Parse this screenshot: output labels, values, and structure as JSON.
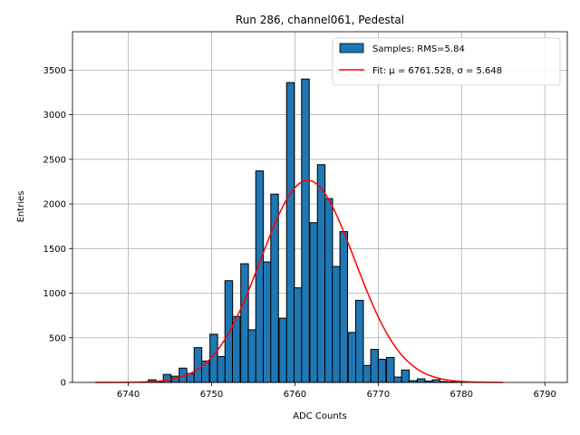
{
  "chart_data": {
    "type": "bar",
    "title": "Run 286, channel061, Pedestal",
    "xlabel": "ADC Counts",
    "ylabel": "Entries",
    "xlim": [
      6733.3,
      6792.7
    ],
    "ylim": [
      0,
      3930
    ],
    "grid": true,
    "legend_position": "top-right",
    "x_ticks": [
      6740,
      6750,
      6760,
      6770,
      6780,
      6790
    ],
    "y_ticks": [
      0,
      500,
      1000,
      1500,
      2000,
      2500,
      3000,
      3500
    ],
    "bin_width": 0.92,
    "bins_start": [
      6741.5,
      6742.4,
      6743.3,
      6744.2,
      6745.2,
      6746.1,
      6747.0,
      6747.9,
      6748.8,
      6749.8,
      6750.7,
      6751.6,
      6752.5,
      6753.5,
      6754.4,
      6755.3,
      6756.2,
      6757.1,
      6758.1,
      6759.0,
      6759.9,
      6760.8,
      6761.8,
      6762.7,
      6763.6,
      6764.5,
      6765.4,
      6766.4,
      6767.3,
      6768.2,
      6769.1,
      6770.0,
      6771.0,
      6771.9,
      6772.8,
      6773.7,
      6774.7,
      6775.6,
      6776.5,
      6777.4,
      6778.3,
      6779.3
    ],
    "counts": [
      5,
      30,
      10,
      90,
      70,
      160,
      100,
      390,
      240,
      540,
      290,
      1140,
      740,
      1330,
      590,
      2370,
      1350,
      2110,
      720,
      3360,
      1060,
      3400,
      1790,
      2440,
      2060,
      1300,
      1690,
      560,
      920,
      190,
      370,
      260,
      280,
      60,
      140,
      20,
      40,
      15,
      30,
      10,
      5,
      3
    ],
    "series": [
      {
        "name": "Samples: RMS=5.84",
        "kind": "histogram",
        "color": "#1f77b4"
      },
      {
        "name": "Fit: μ = 6761.528, σ = 5.648",
        "kind": "gaussian",
        "color": "#ff0000",
        "mu": 6761.528,
        "sigma": 5.648,
        "amplitude": 2265,
        "x_range": [
          6736,
          6785
        ]
      }
    ]
  }
}
